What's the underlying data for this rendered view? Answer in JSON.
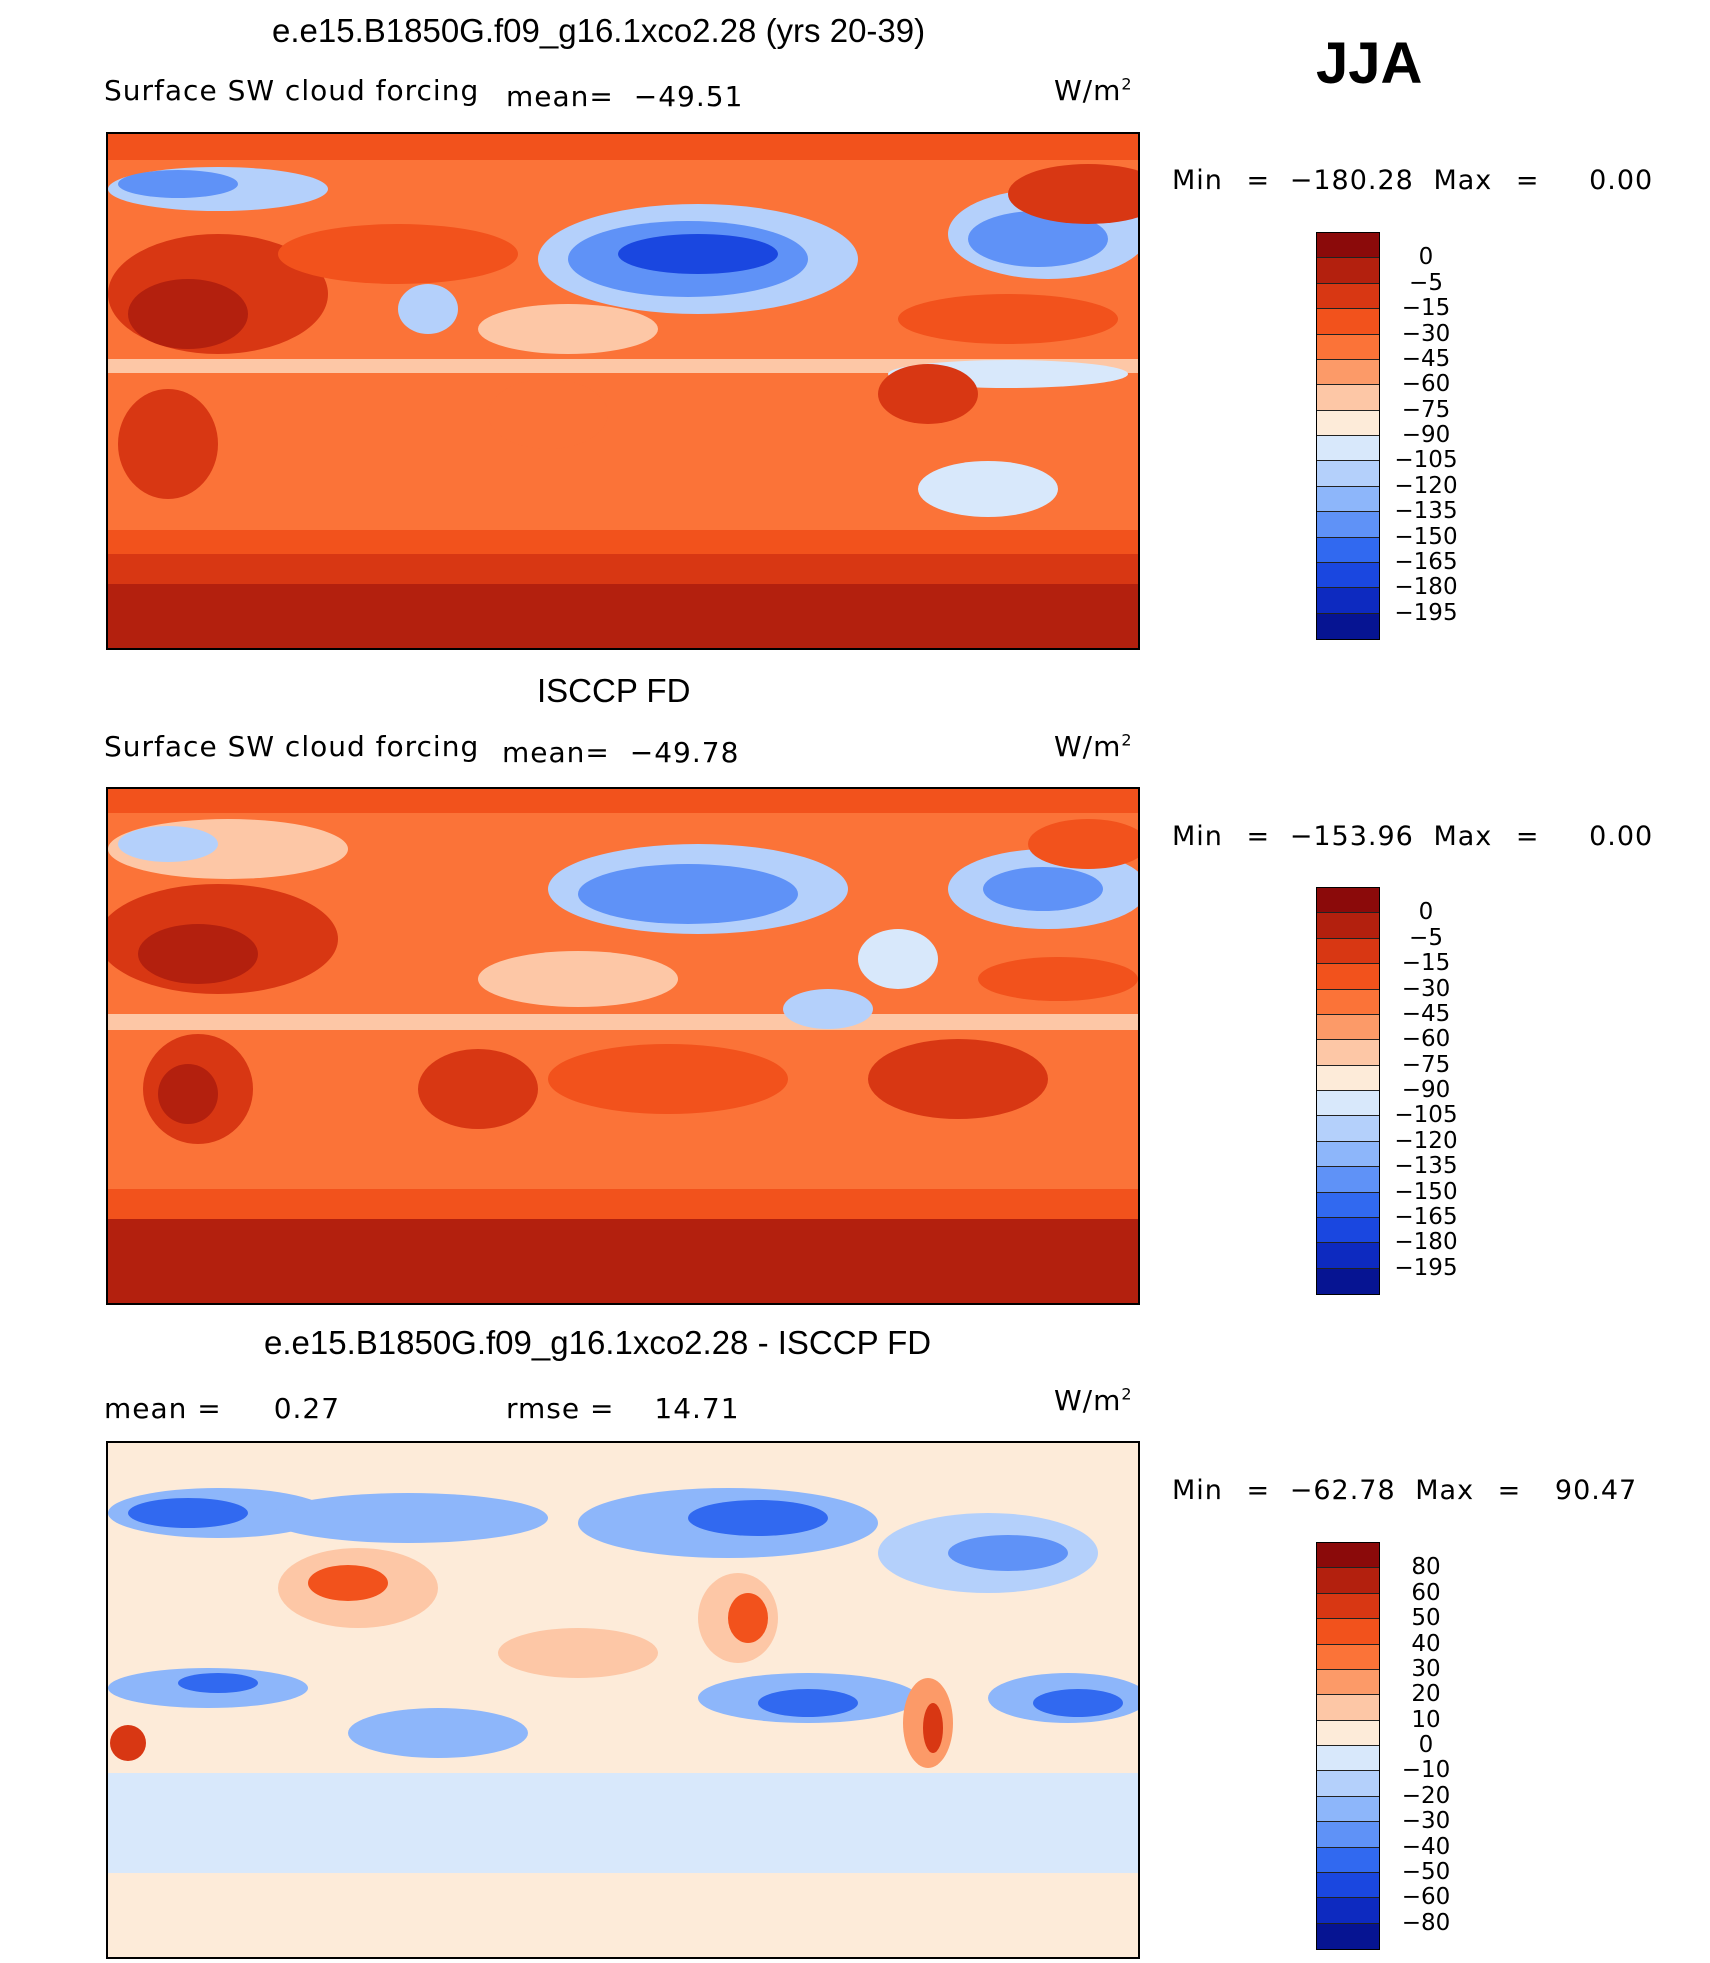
{
  "season": "JJA",
  "units_base": "W/m",
  "units_exp": "2",
  "panels": [
    {
      "id": "model",
      "title": "e.e15.B1850G.f09_g16.1xco2.28 (yrs 20-39)",
      "variable": "Surface SW cloud forcing",
      "left_stat_label": "",
      "left_stat_value": "",
      "mid_stat_label": "mean=",
      "mid_stat_value": "−49.51",
      "min_label": "Min",
      "min_eq": "=",
      "min_value": "−180.28",
      "max_label": "Max",
      "max_eq": "=",
      "max_value": "0.00",
      "colorbar_ticks": [
        "0",
        "−5",
        "−15",
        "−30",
        "−45",
        "−60",
        "−75",
        "−90",
        "−105",
        "−120",
        "−135",
        "−150",
        "−165",
        "−180",
        "−195"
      ],
      "colors": [
        "#8b0a0a",
        "#b3200e",
        "#d83713",
        "#f2521c",
        "#fb7338",
        "#fc9a68",
        "#fdc7a6",
        "#fdebd9",
        "#d8e8fb",
        "#b4d0fb",
        "#8db6fa",
        "#5f92f7",
        "#3169f0",
        "#1a47e0",
        "#0d2ac0",
        "#061492"
      ]
    },
    {
      "id": "obs",
      "title": "ISCCP FD",
      "variable": "Surface SW cloud forcing",
      "left_stat_label": "",
      "left_stat_value": "",
      "mid_stat_label": "mean=",
      "mid_stat_value": "−49.78",
      "min_label": "Min",
      "min_eq": "=",
      "min_value": "−153.96",
      "max_label": "Max",
      "max_eq": "=",
      "max_value": "0.00",
      "colorbar_ticks": [
        "0",
        "−5",
        "−15",
        "−30",
        "−45",
        "−60",
        "−75",
        "−90",
        "−105",
        "−120",
        "−135",
        "−150",
        "−165",
        "−180",
        "−195"
      ],
      "colors": [
        "#8b0a0a",
        "#b3200e",
        "#d83713",
        "#f2521c",
        "#fb7338",
        "#fc9a68",
        "#fdc7a6",
        "#fdebd9",
        "#d8e8fb",
        "#b4d0fb",
        "#8db6fa",
        "#5f92f7",
        "#3169f0",
        "#1a47e0",
        "#0d2ac0",
        "#061492"
      ]
    },
    {
      "id": "diff",
      "title": "e.e15.B1850G.f09_g16.1xco2.28 - ISCCP FD",
      "variable": "",
      "left_stat_label": "mean =",
      "left_stat_value": "0.27",
      "mid_stat_label": "rmse =",
      "mid_stat_value": "14.71",
      "min_label": "Min",
      "min_eq": "=",
      "min_value": "−62.78",
      "max_label": "Max",
      "max_eq": "=",
      "max_value": "90.47",
      "colorbar_ticks": [
        "80",
        "60",
        "50",
        "40",
        "30",
        "20",
        "10",
        "0",
        "−10",
        "−20",
        "−30",
        "−40",
        "−50",
        "−60",
        "−80"
      ],
      "colors": [
        "#8b0a0a",
        "#b3200e",
        "#d83713",
        "#f2521c",
        "#fb7338",
        "#fc9a68",
        "#fdc7a6",
        "#fdebd9",
        "#d8e8fb",
        "#b4d0fb",
        "#8db6fa",
        "#5f92f7",
        "#3169f0",
        "#1a47e0",
        "#0d2ac0",
        "#061492"
      ]
    }
  ]
}
